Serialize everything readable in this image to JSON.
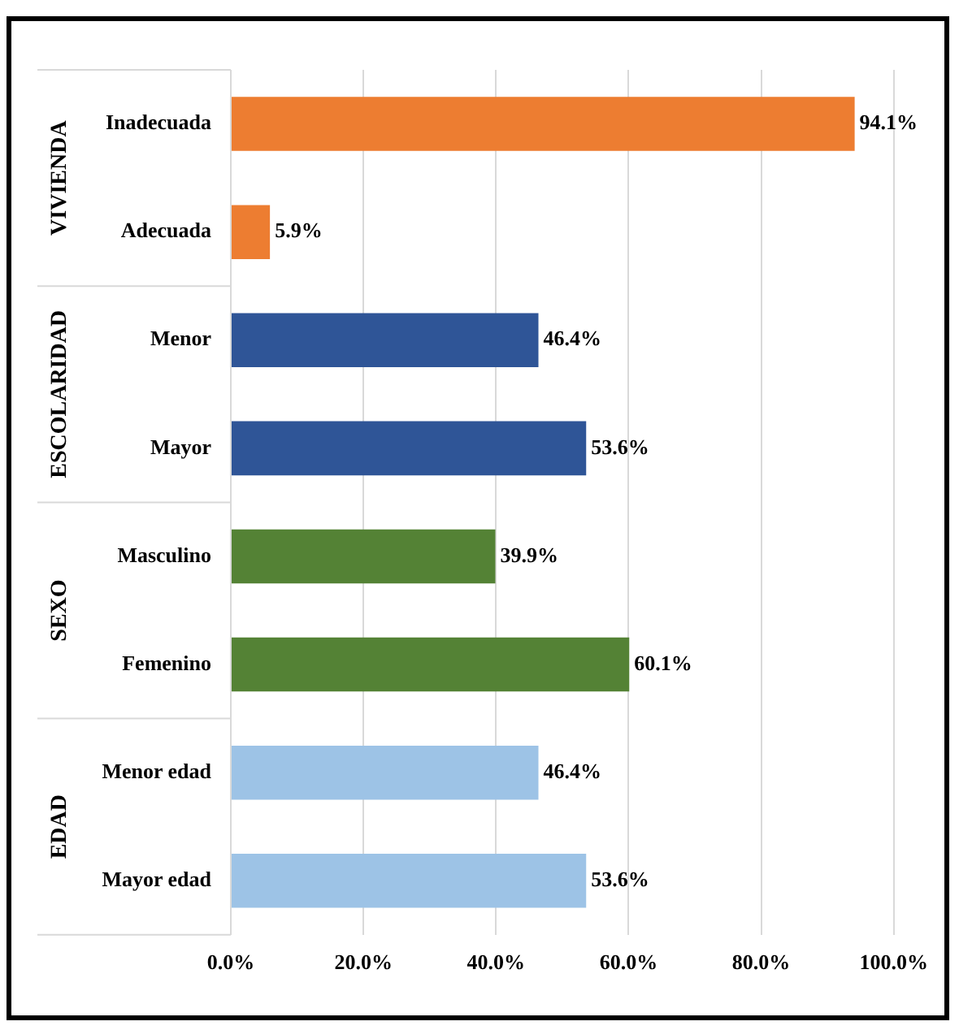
{
  "chart_data": {
    "type": "bar",
    "orientation": "horizontal",
    "categories": [
      "Inadecuada",
      "Adecuada",
      "Menor",
      "Mayor",
      "Masculino",
      "Femenino",
      "Menor edad",
      "Mayor edad"
    ],
    "values": [
      94.1,
      5.9,
      46.4,
      53.6,
      39.9,
      60.1,
      46.4,
      53.6
    ],
    "colors": [
      "#ed7d31",
      "#ed7d31",
      "#2f5597",
      "#2f5597",
      "#548235",
      "#548235",
      "#9dc3e6",
      "#9dc3e6"
    ],
    "value_labels": [
      "94.1%",
      "5.9%",
      "46.4%",
      "53.6%",
      "39.9%",
      "60.1%",
      "46.4%",
      "53.6%"
    ],
    "xlim": [
      0,
      100
    ],
    "xticks": [
      {
        "value": 0,
        "label": "0.0%"
      },
      {
        "value": 20,
        "label": "20.0%"
      },
      {
        "value": 40,
        "label": "40.0%"
      },
      {
        "value": 60,
        "label": "60.0%"
      },
      {
        "value": 80,
        "label": "80.0%"
      },
      {
        "value": 100,
        "label": "100.0%"
      }
    ],
    "annotations": [
      "VIVIENDA",
      "ESCOLARIDAD",
      "SEXO",
      "EDAD"
    ],
    "grid": "x",
    "legend": false
  }
}
